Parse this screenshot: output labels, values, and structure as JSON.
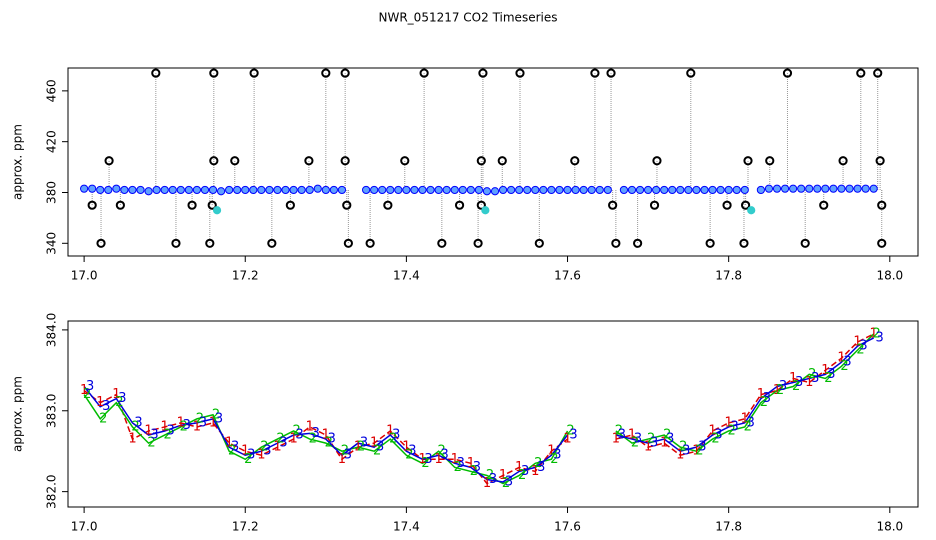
{
  "chart_data": [
    {
      "type": "scatter",
      "title": "NWR_051217  CO2 Timeseries",
      "y_label": "approx. ppm",
      "xlim": [
        16.98,
        18.035
      ],
      "ylim": [
        330,
        478
      ],
      "xticks": [
        {
          "value": 17.0,
          "label": "17.0"
        },
        {
          "value": 17.2,
          "label": "17.2"
        },
        {
          "value": 17.4,
          "label": "17.4"
        },
        {
          "value": 17.6,
          "label": "17.6"
        },
        {
          "value": 17.8,
          "label": "17.8"
        },
        {
          "value": 18.0,
          "label": "18.0"
        }
      ],
      "yticks": [
        340,
        380,
        420,
        460
      ],
      "baseline": 382,
      "series": [
        {
          "color": "#0000ff",
          "marker": "circle",
          "x": [
            17.0,
            17.01,
            17.02,
            17.03,
            17.04,
            17.05,
            17.06,
            17.07,
            17.08,
            17.09,
            17.1,
            17.11,
            17.12,
            17.13,
            17.14,
            17.15,
            17.16,
            17.17,
            17.18,
            17.19,
            17.2,
            17.21,
            17.22,
            17.23,
            17.24,
            17.25,
            17.26,
            17.27,
            17.28,
            17.29,
            17.3,
            17.31,
            17.32,
            17.35,
            17.36,
            17.37,
            17.38,
            17.39,
            17.4,
            17.41,
            17.42,
            17.43,
            17.44,
            17.45,
            17.46,
            17.47,
            17.48,
            17.49,
            17.5,
            17.51,
            17.52,
            17.53,
            17.54,
            17.55,
            17.56,
            17.57,
            17.58,
            17.59,
            17.6,
            17.61,
            17.62,
            17.63,
            17.64,
            17.65,
            17.67,
            17.68,
            17.69,
            17.7,
            17.71,
            17.72,
            17.73,
            17.74,
            17.75,
            17.76,
            17.77,
            17.78,
            17.79,
            17.8,
            17.81,
            17.82,
            17.84,
            17.85,
            17.86,
            17.87,
            17.88,
            17.89,
            17.9,
            17.91,
            17.92,
            17.93,
            17.94,
            17.95,
            17.96,
            17.97,
            17.98
          ],
          "values": [
            383,
            383,
            382,
            382,
            383,
            382,
            382,
            382,
            381,
            382,
            382,
            382,
            382,
            382,
            382,
            382,
            382,
            381,
            382,
            382,
            382,
            382,
            382,
            382,
            382,
            382,
            382,
            382,
            382,
            383,
            382,
            382,
            382,
            382,
            382,
            382,
            382,
            382,
            382,
            382,
            382,
            382,
            382,
            382,
            382,
            382,
            382,
            382,
            381,
            381,
            382,
            382,
            382,
            382,
            382,
            382,
            382,
            382,
            382,
            382,
            382,
            382,
            382,
            382,
            382,
            382,
            382,
            382,
            382,
            382,
            382,
            382,
            382,
            382,
            382,
            382,
            382,
            382,
            382,
            382,
            382,
            383,
            383,
            383,
            383,
            383,
            383,
            383,
            383,
            383,
            383,
            383,
            383,
            383,
            383
          ]
        },
        {
          "color": "#000000",
          "marker": "ring",
          "x": [
            17.089,
            17.161,
            17.211,
            17.3,
            17.324,
            17.422,
            17.495,
            17.541,
            17.634,
            17.654,
            17.753,
            17.873,
            17.964,
            17.985,
            17.031,
            17.161,
            17.187,
            17.279,
            17.324,
            17.398,
            17.493,
            17.519,
            17.609,
            17.711,
            17.824,
            17.851,
            17.942,
            17.988,
            17.01,
            17.045,
            17.134,
            17.159,
            17.256,
            17.326,
            17.377,
            17.466,
            17.493,
            17.656,
            17.708,
            17.798,
            17.821,
            17.918,
            17.99,
            17.021,
            17.114,
            17.156,
            17.233,
            17.328,
            17.355,
            17.444,
            17.489,
            17.565,
            17.66,
            17.687,
            17.777,
            17.819,
            17.895,
            17.99
          ],
          "values": [
            474,
            474,
            474,
            474,
            474,
            474,
            474,
            474,
            474,
            474,
            474,
            474,
            474,
            474,
            405,
            405,
            405,
            405,
            405,
            405,
            405,
            405,
            405,
            405,
            405,
            405,
            405,
            405,
            370,
            370,
            370,
            370,
            370,
            370,
            370,
            370,
            370,
            370,
            370,
            370,
            370,
            370,
            370,
            340,
            340,
            340,
            340,
            340,
            340,
            340,
            340,
            340,
            340,
            340,
            340,
            340,
            340,
            340
          ]
        },
        {
          "color": "#33cccc",
          "marker": "dot",
          "x": [
            17.165,
            17.498,
            17.828
          ],
          "values": [
            366,
            366,
            366
          ]
        }
      ]
    },
    {
      "type": "line",
      "y_label": "approx. ppm",
      "xlim": [
        16.98,
        18.035
      ],
      "ylim": [
        381.81,
        384.11
      ],
      "xticks": [
        {
          "value": 17.0,
          "label": "17.0"
        },
        {
          "value": 17.2,
          "label": "17.2"
        },
        {
          "value": 17.4,
          "label": "17.4"
        },
        {
          "value": 17.6,
          "label": "17.6"
        },
        {
          "value": 17.8,
          "label": "17.8"
        },
        {
          "value": 18.0,
          "label": "18.0"
        }
      ],
      "yticks": [
        {
          "value": 382,
          "label": "382.0"
        },
        {
          "value": 383,
          "label": "383.0"
        },
        {
          "value": 384,
          "label": "384.0"
        }
      ],
      "x": [
        17.0,
        17.02,
        17.04,
        17.06,
        17.08,
        17.1,
        17.12,
        17.14,
        17.16,
        17.18,
        17.2,
        17.22,
        17.24,
        17.26,
        17.28,
        17.3,
        17.32,
        17.34,
        17.36,
        17.38,
        17.4,
        17.42,
        17.44,
        17.46,
        17.48,
        17.5,
        17.52,
        17.54,
        17.56,
        17.58,
        17.6,
        17.63,
        17.66,
        17.68,
        17.7,
        17.72,
        17.74,
        17.76,
        17.78,
        17.8,
        17.82,
        17.84,
        17.86,
        17.88,
        17.9,
        17.92,
        17.94,
        17.96,
        17.98
      ],
      "series": [
        {
          "name": "1",
          "color": "#dd0000",
          "values": [
            383.25,
            383.1,
            383.2,
            382.65,
            382.75,
            382.8,
            382.85,
            382.8,
            382.85,
            382.6,
            382.5,
            382.45,
            382.55,
            382.65,
            382.8,
            382.7,
            382.4,
            382.55,
            382.6,
            382.75,
            382.55,
            382.4,
            382.4,
            382.4,
            382.35,
            382.1,
            382.2,
            382.3,
            382.25,
            382.5,
            382.65,
            null,
            382.65,
            382.7,
            382.55,
            382.6,
            382.45,
            382.5,
            382.75,
            382.85,
            382.9,
            383.2,
            383.25,
            383.4,
            383.35,
            383.5,
            383.65,
            383.85,
            383.95
          ]
        },
        {
          "name": "2",
          "color": "#00bb00",
          "values": [
            383.2,
            382.9,
            383.1,
            382.8,
            382.6,
            382.7,
            382.8,
            382.9,
            382.95,
            382.5,
            382.4,
            382.55,
            382.65,
            382.75,
            382.65,
            382.6,
            382.5,
            382.55,
            382.5,
            382.65,
            382.45,
            382.35,
            382.5,
            382.3,
            382.25,
            382.2,
            382.1,
            382.2,
            382.35,
            382.4,
            382.75,
            null,
            382.75,
            382.6,
            382.65,
            382.7,
            382.55,
            382.5,
            382.65,
            382.75,
            382.8,
            383.1,
            383.25,
            383.3,
            383.45,
            383.4,
            383.55,
            383.75,
            383.95
          ]
        },
        {
          "name": "3",
          "color": "#0000dd",
          "values": [
            383.3,
            383.05,
            383.15,
            382.85,
            382.7,
            382.75,
            382.82,
            382.85,
            382.9,
            382.55,
            382.45,
            382.5,
            382.6,
            382.7,
            382.72,
            382.65,
            382.45,
            382.6,
            382.55,
            382.7,
            382.5,
            382.4,
            382.45,
            382.35,
            382.3,
            382.15,
            382.12,
            382.25,
            382.3,
            382.45,
            382.7,
            null,
            382.7,
            382.65,
            382.6,
            382.65,
            382.5,
            382.55,
            382.7,
            382.8,
            382.85,
            383.15,
            383.3,
            383.35,
            383.4,
            383.45,
            383.6,
            383.8,
            383.9
          ]
        }
      ]
    }
  ]
}
